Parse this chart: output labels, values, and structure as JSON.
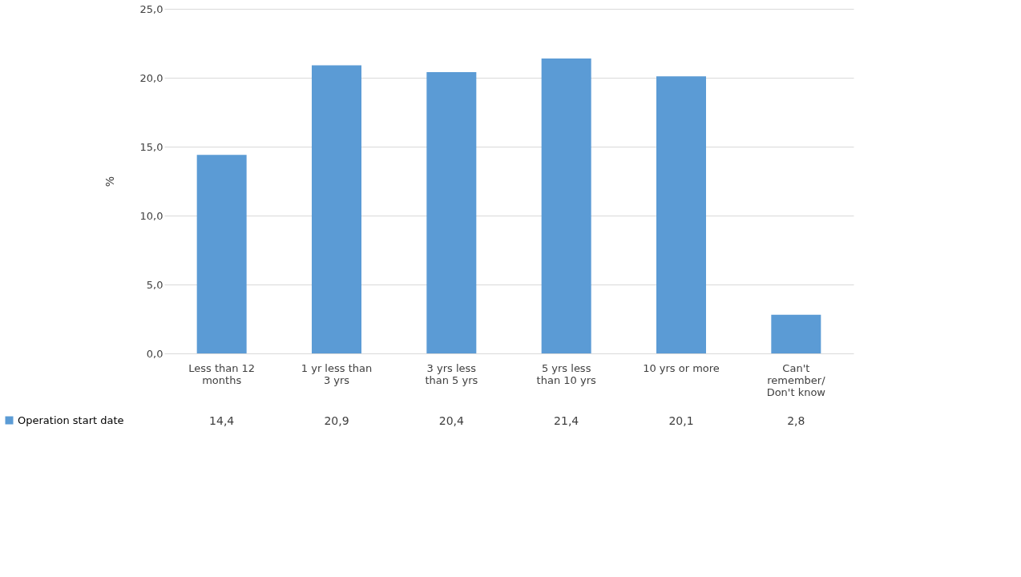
{
  "chart_data": {
    "type": "bar",
    "ylabel": "%",
    "categories": [
      "Less than 12 months",
      "1 yr less than 3 yrs",
      "3 yrs less than 5 yrs",
      "5 yrs less than 10 yrs",
      "10 yrs or more",
      "Can't remember/ Don't know"
    ],
    "series": [
      {
        "name": "Operation start date",
        "color": "#5b9bd5",
        "values": [
          14.4,
          20.9,
          20.4,
          21.4,
          20.1,
          2.8
        ],
        "value_labels": [
          "14,4",
          "20,9",
          "20,4",
          "21,4",
          "20,1",
          "2,8"
        ]
      }
    ],
    "ylim": [
      0,
      25
    ],
    "yticks": [
      {
        "value": 0,
        "label": "0,0"
      },
      {
        "value": 5,
        "label": "5,0"
      },
      {
        "value": 10,
        "label": "10,0"
      },
      {
        "value": 15,
        "label": "15,0"
      },
      {
        "value": 20,
        "label": "20,0"
      },
      {
        "value": 25,
        "label": "25,0"
      }
    ],
    "grid": "y",
    "legend": "bottom left"
  }
}
